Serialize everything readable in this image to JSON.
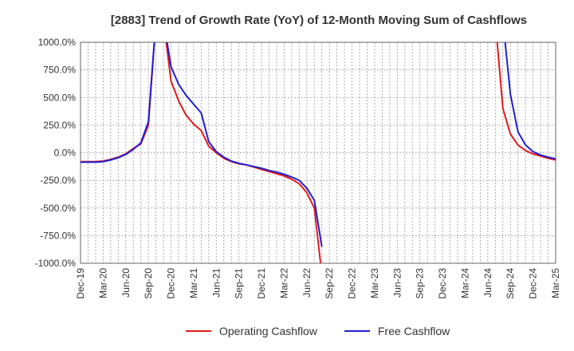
{
  "chart_data": {
    "type": "line",
    "title": "[2883]  Trend of Growth Rate (YoY) of 12-Month Moving Sum of Cashflows",
    "xlabel": "",
    "ylabel": "",
    "ylim": [
      -1000,
      1000
    ],
    "y_ticks": [
      "1000.0%",
      "750.0%",
      "500.0%",
      "250.0%",
      "0.0%",
      "-250.0%",
      "-500.0%",
      "-750.0%",
      "-1000.0%"
    ],
    "y_tick_values": [
      1000,
      750,
      500,
      250,
      0,
      -250,
      -500,
      -750,
      -1000
    ],
    "x_ticks": [
      "Dec-19",
      "Mar-20",
      "Jun-20",
      "Sep-20",
      "Dec-20",
      "Mar-21",
      "Jun-21",
      "Sep-21",
      "Dec-21",
      "Mar-22",
      "Jun-22",
      "Sep-22",
      "Dec-22",
      "Mar-23",
      "Jun-23",
      "Sep-23",
      "Dec-23",
      "Mar-24",
      "Jun-24",
      "Sep-24",
      "Dec-24",
      "Mar-25"
    ],
    "grid": true,
    "legend_position": "bottom",
    "series": [
      {
        "name": "Operating Cashflow",
        "color": "#e31a1c",
        "segments": [
          [
            [
              0,
              -80
            ],
            [
              1,
              -80
            ],
            [
              2,
              -80
            ],
            [
              3,
              -75
            ],
            [
              4,
              -60
            ],
            [
              5,
              -40
            ],
            [
              6,
              -10
            ],
            [
              7,
              40
            ],
            [
              8,
              80
            ],
            [
              9,
              250
            ],
            [
              10,
              1200
            ]
          ],
          [
            [
              11,
              1200
            ],
            [
              12,
              650
            ],
            [
              13,
              470
            ],
            [
              14,
              340
            ],
            [
              15,
              260
            ],
            [
              16,
              200
            ],
            [
              17,
              60
            ],
            [
              18,
              0
            ],
            [
              19,
              -50
            ],
            [
              20,
              -80
            ],
            [
              21,
              -100
            ],
            [
              22,
              -110
            ],
            [
              23,
              -130
            ],
            [
              24,
              -150
            ],
            [
              25,
              -170
            ],
            [
              26,
              -190
            ],
            [
              27,
              -210
            ],
            [
              28,
              -240
            ],
            [
              29,
              -280
            ],
            [
              30,
              -360
            ],
            [
              31,
              -500
            ],
            [
              32,
              -1100
            ]
          ],
          [
            [
              55,
              1200
            ],
            [
              56,
              400
            ],
            [
              57,
              170
            ],
            [
              58,
              70
            ],
            [
              59,
              20
            ],
            [
              60,
              -10
            ],
            [
              61,
              -30
            ],
            [
              62,
              -50
            ],
            [
              63,
              -65
            ]
          ]
        ]
      },
      {
        "name": "Free Cashflow",
        "color": "#1f1fd6",
        "segments": [
          [
            [
              0,
              -85
            ],
            [
              1,
              -85
            ],
            [
              2,
              -85
            ],
            [
              3,
              -80
            ],
            [
              4,
              -65
            ],
            [
              5,
              -45
            ],
            [
              6,
              -15
            ],
            [
              7,
              30
            ],
            [
              8,
              90
            ],
            [
              9,
              280
            ],
            [
              10,
              1200
            ]
          ],
          [
            [
              11,
              1200
            ],
            [
              12,
              780
            ],
            [
              13,
              620
            ],
            [
              14,
              520
            ],
            [
              15,
              440
            ],
            [
              16,
              360
            ],
            [
              17,
              100
            ],
            [
              18,
              10
            ],
            [
              19,
              -40
            ],
            [
              20,
              -75
            ],
            [
              21,
              -95
            ],
            [
              22,
              -110
            ],
            [
              23,
              -125
            ],
            [
              24,
              -140
            ],
            [
              25,
              -160
            ],
            [
              26,
              -175
            ],
            [
              27,
              -195
            ],
            [
              28,
              -220
            ],
            [
              29,
              -250
            ],
            [
              30,
              -320
            ],
            [
              31,
              -430
            ],
            [
              32,
              -850
            ]
          ],
          [
            [
              56,
              1200
            ],
            [
              57,
              530
            ],
            [
              58,
              190
            ],
            [
              59,
              70
            ],
            [
              60,
              10
            ],
            [
              61,
              -20
            ],
            [
              62,
              -40
            ],
            [
              63,
              -55
            ]
          ]
        ]
      }
    ]
  }
}
